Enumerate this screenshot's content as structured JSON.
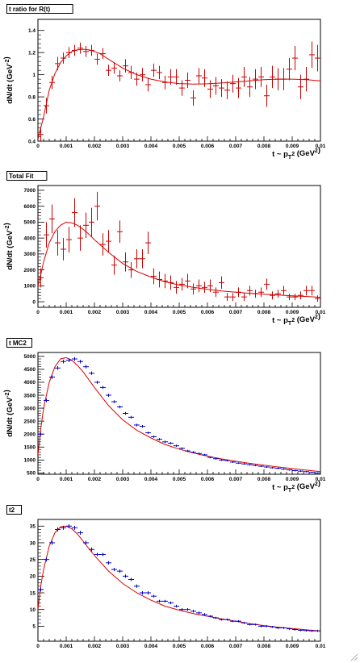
{
  "chart_data": [
    {
      "type": "scatter",
      "title": "t ratio for R(t)",
      "xlabel": "t ~ p_T^2 (GeV^2)",
      "ylabel": "dN/dt (GeV^-2)",
      "xlim": [
        0,
        0.01
      ],
      "ylim": [
        0.4,
        1.5
      ],
      "x_ticks": [
        "0",
        "0.001",
        "0.002",
        "0.003",
        "0.004",
        "0.005",
        "0.006",
        "0.007",
        "0.008",
        "0.009",
        "0.01"
      ],
      "y_ticks": [
        "0.4",
        "0.6",
        "0.8",
        "1",
        "1.2",
        "1.4"
      ],
      "y_tick_values": [
        0.4,
        0.6,
        0.8,
        1.0,
        1.2,
        1.4
      ],
      "points_color": "#cc0000",
      "fit_color": "#dd0000",
      "points": {
        "x": [
          0.0001,
          0.0003,
          0.0005,
          0.0007,
          0.0009,
          0.0011,
          0.0013,
          0.0015,
          0.0017,
          0.0019,
          0.0021,
          0.0023,
          0.0025,
          0.0027,
          0.0029,
          0.0031,
          0.0033,
          0.0035,
          0.0037,
          0.0039,
          0.0041,
          0.0043,
          0.0045,
          0.0047,
          0.0049,
          0.0051,
          0.0053,
          0.0055,
          0.0057,
          0.0059,
          0.0061,
          0.0063,
          0.0065,
          0.0067,
          0.0069,
          0.0071,
          0.0073,
          0.0075,
          0.0077,
          0.0079,
          0.0081,
          0.0083,
          0.0085,
          0.0087,
          0.0089,
          0.0091,
          0.0093,
          0.0095,
          0.0097,
          0.0099
        ],
        "y": [
          0.46,
          0.72,
          0.93,
          1.1,
          1.15,
          1.2,
          1.22,
          1.24,
          1.21,
          1.22,
          1.14,
          1.19,
          1.04,
          1.06,
          0.99,
          1.08,
          1.02,
          0.96,
          1.0,
          0.91,
          1.04,
          1.02,
          0.93,
          0.98,
          0.98,
          0.88,
          0.95,
          0.79,
          0.99,
          0.97,
          0.87,
          0.9,
          0.88,
          0.86,
          0.92,
          0.88,
          0.98,
          0.89,
          0.96,
          0.98,
          0.81,
          0.98,
          0.96,
          0.96,
          1.05,
          1.15,
          0.89,
          0.96,
          1.18,
          1.15
        ],
        "err": [
          0.07,
          0.07,
          0.06,
          0.06,
          0.05,
          0.05,
          0.05,
          0.05,
          0.05,
          0.05,
          0.05,
          0.05,
          0.05,
          0.05,
          0.05,
          0.06,
          0.06,
          0.06,
          0.06,
          0.06,
          0.06,
          0.06,
          0.06,
          0.07,
          0.07,
          0.07,
          0.07,
          0.07,
          0.07,
          0.08,
          0.08,
          0.08,
          0.08,
          0.08,
          0.08,
          0.09,
          0.09,
          0.09,
          0.09,
          0.09,
          0.1,
          0.1,
          0.1,
          0.1,
          0.1,
          0.11,
          0.11,
          0.11,
          0.12,
          0.12
        ]
      },
      "fit": {
        "x": [
          0,
          0.0001,
          0.0002,
          0.0004,
          0.0006,
          0.0008,
          0.001,
          0.0012,
          0.0014,
          0.0016,
          0.0018,
          0.002,
          0.0022,
          0.0025,
          0.003,
          0.0035,
          0.004,
          0.0045,
          0.005,
          0.0055,
          0.006,
          0.0065,
          0.007,
          0.0075,
          0.008,
          0.0085,
          0.009,
          0.0095,
          0.01
        ],
        "y": [
          0.42,
          0.52,
          0.62,
          0.86,
          1.01,
          1.11,
          1.17,
          1.21,
          1.225,
          1.23,
          1.225,
          1.21,
          1.19,
          1.14,
          1.06,
          1.0,
          0.96,
          0.935,
          0.92,
          0.915,
          0.918,
          0.925,
          0.935,
          0.945,
          0.955,
          0.96,
          0.96,
          0.955,
          0.945
        ]
      }
    },
    {
      "type": "scatter",
      "title": "Total Fit",
      "xlabel": "t ~ p_T^2 (GeV^2)",
      "ylabel": "dN/dt (GeV^-2)",
      "xlim": [
        0,
        0.01
      ],
      "ylim": [
        -350,
        7300
      ],
      "x_ticks": [
        "0",
        "0.001",
        "0.002",
        "0.003",
        "0.004",
        "0.005",
        "0.006",
        "0.007",
        "0.008",
        "0.009",
        "0.01"
      ],
      "y_ticks": [
        "0",
        "1000",
        "2000",
        "3000",
        "4000",
        "5000",
        "6000",
        "7000"
      ],
      "y_tick_values": [
        0,
        1000,
        2000,
        3000,
        4000,
        5000,
        6000,
        7000
      ],
      "points_color": "#cc0000",
      "fit_color": "#dd0000",
      "points": {
        "x": [
          0.0001,
          0.0003,
          0.0005,
          0.0007,
          0.0009,
          0.0011,
          0.0013,
          0.0015,
          0.0017,
          0.0019,
          0.0021,
          0.0023,
          0.0025,
          0.0027,
          0.0029,
          0.0031,
          0.0033,
          0.0035,
          0.0037,
          0.0039,
          0.0041,
          0.0043,
          0.0045,
          0.0047,
          0.0049,
          0.0051,
          0.0053,
          0.0055,
          0.0057,
          0.0059,
          0.0061,
          0.0063,
          0.0065,
          0.0067,
          0.0069,
          0.0071,
          0.0073,
          0.0075,
          0.0077,
          0.0079,
          0.0081,
          0.0083,
          0.0085,
          0.0087,
          0.0089,
          0.0091,
          0.0093,
          0.0095,
          0.0097,
          0.0099
        ],
        "y": [
          1500,
          4200,
          5200,
          3700,
          3300,
          3900,
          5600,
          4000,
          4800,
          5000,
          6000,
          3600,
          3800,
          2300,
          4400,
          2500,
          2000,
          2700,
          2700,
          3700,
          1600,
          1400,
          1300,
          1200,
          900,
          1100,
          1300,
          800,
          1000,
          900,
          1000,
          600,
          1200,
          300,
          300,
          600,
          300,
          700,
          500,
          600,
          1100,
          400,
          500,
          700,
          300,
          300,
          400,
          700,
          700,
          200
        ],
        "err": [
          600,
          800,
          900,
          800,
          700,
          800,
          900,
          800,
          800,
          900,
          900,
          700,
          700,
          600,
          700,
          600,
          500,
          600,
          600,
          700,
          500,
          500,
          450,
          450,
          400,
          400,
          450,
          350,
          400,
          350,
          400,
          300,
          400,
          250,
          250,
          300,
          250,
          300,
          250,
          300,
          350,
          250,
          250,
          300,
          200,
          200,
          250,
          300,
          300,
          200
        ]
      },
      "fit": {
        "x": [
          0,
          0.0001,
          0.0002,
          0.0004,
          0.0006,
          0.0008,
          0.001,
          0.0012,
          0.0014,
          0.0016,
          0.0018,
          0.002,
          0.0025,
          0.003,
          0.0035,
          0.004,
          0.0045,
          0.005,
          0.0055,
          0.006,
          0.0065,
          0.007,
          0.0075,
          0.008,
          0.0085,
          0.009,
          0.0095,
          0.01
        ],
        "y": [
          1000,
          1700,
          2500,
          3700,
          4400,
          4800,
          5000,
          4950,
          4800,
          4550,
          4250,
          3900,
          3100,
          2400,
          1900,
          1550,
          1250,
          1050,
          900,
          780,
          680,
          600,
          530,
          470,
          420,
          370,
          330,
          280
        ]
      }
    },
    {
      "type": "scatter",
      "title": "t MC2",
      "xlabel": "t ~ p_T^2 (GeV^2)",
      "ylabel": "dN/dt (GeV^-2)",
      "xlim": [
        0,
        0.01
      ],
      "ylim": [
        450,
        5150
      ],
      "x_ticks": [
        "0",
        "0.001",
        "0.002",
        "0.003",
        "0.004",
        "0.005",
        "0.006",
        "0.007",
        "0.008",
        "0.009",
        "0.01"
      ],
      "y_ticks": [
        "500",
        "1000",
        "1500",
        "2000",
        "2500",
        "3000",
        "3500",
        "4000",
        "4500",
        "5000"
      ],
      "y_tick_values": [
        500,
        1000,
        1500,
        2000,
        2500,
        3000,
        3500,
        4000,
        4500,
        5000
      ],
      "points_color": "#0000cc",
      "fit_color": "#dd0000",
      "points": {
        "x": [
          0.0001,
          0.0003,
          0.0005,
          0.0007,
          0.0009,
          0.0011,
          0.0013,
          0.0015,
          0.0017,
          0.0019,
          0.0021,
          0.0023,
          0.0025,
          0.0027,
          0.0029,
          0.0031,
          0.0033,
          0.0035,
          0.0037,
          0.0039,
          0.0041,
          0.0043,
          0.0045,
          0.0047,
          0.0049,
          0.0051,
          0.0053,
          0.0055,
          0.0057,
          0.0059,
          0.0061,
          0.0063,
          0.0065,
          0.0067,
          0.0069,
          0.0071,
          0.0073,
          0.0075,
          0.0077,
          0.0079,
          0.0081,
          0.0083,
          0.0085,
          0.0087,
          0.0089,
          0.0091,
          0.0093,
          0.0095,
          0.0097,
          0.0099
        ],
        "y": [
          2000,
          3300,
          4200,
          4550,
          4800,
          4850,
          4900,
          4800,
          4600,
          4350,
          4000,
          3800,
          3500,
          3250,
          3050,
          2800,
          2650,
          2350,
          2300,
          2050,
          1900,
          1800,
          1700,
          1650,
          1550,
          1450,
          1350,
          1300,
          1250,
          1200,
          1100,
          1050,
          1000,
          980,
          920,
          880,
          850,
          820,
          790,
          760,
          730,
          700,
          680,
          650,
          620,
          590,
          570,
          550,
          520,
          500
        ],
        "err": [
          60,
          70,
          70,
          70,
          70,
          70,
          70,
          70,
          70,
          65,
          60,
          60,
          60,
          55,
          55,
          55,
          50,
          50,
          50,
          45,
          45,
          45,
          45,
          40,
          40,
          40,
          40,
          40,
          35,
          35,
          35,
          35,
          35,
          35,
          30,
          30,
          30,
          30,
          30,
          30,
          30,
          30,
          30,
          30,
          30,
          30,
          30,
          30,
          25,
          25
        ]
      },
      "fit": {
        "x": [
          0,
          0.0001,
          0.0002,
          0.0004,
          0.0006,
          0.0008,
          0.001,
          0.0012,
          0.0014,
          0.0016,
          0.0018,
          0.002,
          0.0025,
          0.003,
          0.0035,
          0.004,
          0.0045,
          0.005,
          0.0055,
          0.006,
          0.0065,
          0.007,
          0.0075,
          0.008,
          0.0085,
          0.009,
          0.0095,
          0.01
        ],
        "y": [
          1200,
          2200,
          3000,
          4000,
          4600,
          4900,
          4950,
          4850,
          4650,
          4400,
          4100,
          3800,
          3100,
          2550,
          2150,
          1850,
          1600,
          1420,
          1270,
          1150,
          1040,
          950,
          870,
          800,
          730,
          670,
          610,
          550
        ]
      }
    },
    {
      "type": "scatter",
      "title": "t2",
      "xlabel": "",
      "ylabel": "",
      "xlim": [
        0,
        0.01
      ],
      "ylim": [
        0.5,
        37
      ],
      "x_ticks": [
        "0",
        "0.001",
        "0.002",
        "0.003",
        "0.004",
        "0.005",
        "0.006",
        "0.007",
        "0.008",
        "0.009",
        "0.01"
      ],
      "y_ticks": [
        "5",
        "10",
        "15",
        "20",
        "25",
        "30",
        "35"
      ],
      "y_tick_values": [
        5,
        10,
        15,
        20,
        25,
        30,
        35
      ],
      "points_color": "#0000cc",
      "fit_color": "#dd0000",
      "points": {
        "x": [
          0.0001,
          0.0003,
          0.0005,
          0.0007,
          0.0009,
          0.0011,
          0.0013,
          0.0015,
          0.0017,
          0.0019,
          0.0021,
          0.0023,
          0.0025,
          0.0027,
          0.0029,
          0.0031,
          0.0033,
          0.0035,
          0.0037,
          0.0039,
          0.0041,
          0.0043,
          0.0045,
          0.0047,
          0.0049,
          0.0051,
          0.0053,
          0.0055,
          0.0057,
          0.0059,
          0.0061,
          0.0063,
          0.0065,
          0.0067,
          0.0069,
          0.0071,
          0.0073,
          0.0075,
          0.0077,
          0.0079,
          0.0081,
          0.0083,
          0.0085,
          0.0087,
          0.0089,
          0.0091,
          0.0093,
          0.0095,
          0.0097,
          0.0099
        ],
        "y": [
          16,
          25,
          30,
          34,
          34.5,
          35,
          34.5,
          33,
          30,
          28,
          26.5,
          26.5,
          24,
          22,
          21.5,
          20,
          19,
          17,
          15,
          15,
          14,
          12.5,
          12.5,
          12,
          11,
          10,
          10,
          9.5,
          9,
          8.5,
          8,
          7.5,
          7,
          7,
          6.5,
          6.5,
          6,
          5.5,
          5.5,
          5,
          5,
          4.8,
          4.5,
          4.5,
          4.2,
          4,
          3.8,
          3.7,
          3.6,
          3.6
        ],
        "err": [
          0.6,
          0.6,
          0.6,
          0.6,
          0.6,
          0.6,
          0.6,
          0.6,
          0.6,
          0.6,
          0.5,
          0.5,
          0.5,
          0.5,
          0.5,
          0.5,
          0.5,
          0.5,
          0.5,
          0.5,
          0.4,
          0.4,
          0.4,
          0.4,
          0.4,
          0.4,
          0.4,
          0.4,
          0.4,
          0.4,
          0.3,
          0.3,
          0.3,
          0.3,
          0.3,
          0.3,
          0.3,
          0.3,
          0.3,
          0.3,
          0.3,
          0.3,
          0.3,
          0.3,
          0.3,
          0.3,
          0.3,
          0.3,
          0.3,
          0.3
        ]
      },
      "fit": {
        "x": [
          0,
          0.0001,
          0.0002,
          0.0004,
          0.0006,
          0.0008,
          0.001,
          0.0012,
          0.0014,
          0.0016,
          0.0018,
          0.002,
          0.0025,
          0.003,
          0.0035,
          0.004,
          0.0045,
          0.005,
          0.0055,
          0.006,
          0.0065,
          0.007,
          0.0075,
          0.008,
          0.0085,
          0.009,
          0.0095,
          0.01
        ],
        "y": [
          10,
          17,
          22,
          29,
          33,
          34.8,
          35,
          34.2,
          32.6,
          30.5,
          28.3,
          26.2,
          21.5,
          17.8,
          15,
          12.8,
          11,
          9.8,
          8.8,
          8,
          7.2,
          6.5,
          5.8,
          5.2,
          4.7,
          4.3,
          3.9,
          3.6
        ]
      }
    }
  ]
}
